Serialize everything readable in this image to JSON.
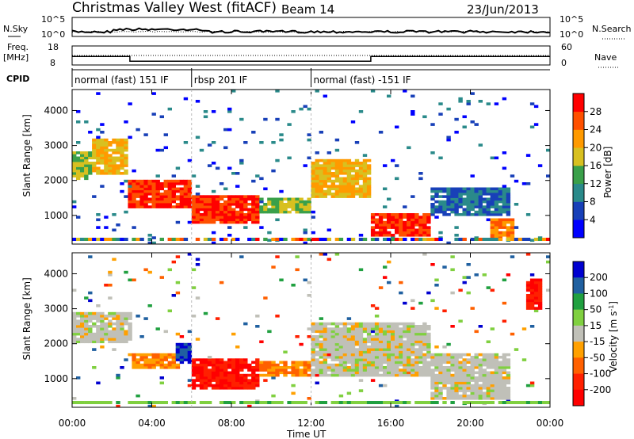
{
  "header": {
    "title": "Christmas Valley West (fitACF)",
    "beam": "Beam 14",
    "date": "23/Jun/2013"
  },
  "noise_panel": {
    "left_label": "N.Sky",
    "right_label": "N.Search",
    "left_ticks": [
      "10^5",
      "10^0"
    ],
    "right_ticks": [
      "10^5",
      "10^0"
    ]
  },
  "freq_panel": {
    "left_label_1": "Freq.",
    "left_label_2": "[MHz]",
    "left_ticks": [
      "18",
      "8"
    ],
    "right_ticks": [
      "60",
      "0"
    ],
    "right_label": "Nave"
  },
  "cpid_panel": {
    "label": "CPID",
    "segments": [
      {
        "start": 0.0,
        "end": 6.0,
        "text": "normal (fast) 151 IF"
      },
      {
        "start": 6.0,
        "end": 12.0,
        "text": "rbsp 201 IF"
      },
      {
        "start": 12.0,
        "end": 24.0,
        "text": "normal (fast) -151 IF"
      }
    ]
  },
  "axes": {
    "x_label": "Time UT",
    "x_ticks": [
      "00:00",
      "04:00",
      "08:00",
      "12:00",
      "16:00",
      "20:00",
      "00:00"
    ],
    "x_range": [
      0,
      24
    ],
    "y_label": "Slant Range [km]",
    "y_ticks": [
      "1000",
      "2000",
      "3000",
      "4000"
    ],
    "y_range": [
      180,
      4600
    ]
  },
  "power_scale": {
    "label": "Power [dB]",
    "ticks": [
      "4",
      "8",
      "12",
      "16",
      "20",
      "24",
      "28"
    ],
    "colors": [
      "#0000ff",
      "#1840b8",
      "#2a8a8a",
      "#3aa04a",
      "#d8c020",
      "#ff9a00",
      "#ff5000",
      "#ff0000"
    ]
  },
  "velocity_scale": {
    "label": "Velocity [m s",
    "label_sup": "-1",
    "label_end": "]",
    "ticks": [
      "200",
      "100",
      "50",
      "15",
      "-15",
      "-50",
      "-100",
      "-200"
    ],
    "colors": [
      "#0000d0",
      "#2060a0",
      "#20a040",
      "#80d040",
      "#c0c0b8",
      "#ffa000",
      "#ff6000",
      "#ff2000",
      "#ff0000"
    ]
  },
  "chart_data": {
    "type": "heatmap",
    "title": "Christmas Valley West (fitACF)",
    "subtitle": "Beam 14",
    "date": "23/Jun/2013",
    "xlabel": "Time UT",
    "ylabel": "Slant Range [km]",
    "xlim": [
      0,
      24
    ],
    "ylim": [
      180,
      4600
    ],
    "frequency_mhz": [
      {
        "start": 0.0,
        "end": 2.9,
        "value": 12.5
      },
      {
        "start": 2.9,
        "end": 15.0,
        "value": 10.0
      },
      {
        "start": 15.0,
        "end": 24.0,
        "value": 12.5
      }
    ],
    "power_regions": [
      {
        "t0": 0.0,
        "t1": 1.0,
        "r0": 2000,
        "r1": 2800,
        "value": 16
      },
      {
        "t0": 1.0,
        "t1": 2.8,
        "r0": 2200,
        "r1": 3200,
        "value": 20
      },
      {
        "t0": 2.8,
        "t1": 6.0,
        "r0": 1200,
        "r1": 2000,
        "value": 28
      },
      {
        "t0": 6.0,
        "t1": 9.5,
        "r0": 800,
        "r1": 1600,
        "value": 28
      },
      {
        "t0": 9.5,
        "t1": 12.0,
        "r0": 1100,
        "r1": 1500,
        "value": 16
      },
      {
        "t0": 12.0,
        "t1": 15.0,
        "r0": 1500,
        "r1": 2600,
        "value": 20
      },
      {
        "t0": 15.0,
        "t1": 18.0,
        "r0": 400,
        "r1": 1100,
        "value": 28
      },
      {
        "t0": 18.0,
        "t1": 22.0,
        "r0": 1000,
        "r1": 1800,
        "value": 8
      },
      {
        "t0": 21.0,
        "t1": 22.2,
        "r0": 300,
        "r1": 900,
        "value": 24
      }
    ],
    "velocity_regions": [
      {
        "t0": 0.0,
        "t1": 3.0,
        "r0": 2000,
        "r1": 2900,
        "value": 0
      },
      {
        "t0": 3.0,
        "t1": 5.5,
        "r0": 1300,
        "r1": 1700,
        "value": -50
      },
      {
        "t0": 5.3,
        "t1": 6.0,
        "r0": 1400,
        "r1": 2000,
        "value": 200
      },
      {
        "t0": 6.0,
        "t1": 9.5,
        "r0": 700,
        "r1": 1600,
        "value": -200
      },
      {
        "t0": 9.5,
        "t1": 12.0,
        "r0": 1100,
        "r1": 1500,
        "value": -50
      },
      {
        "t0": 12.0,
        "t1": 18.0,
        "r0": 1100,
        "r1": 2600,
        "value": 0
      },
      {
        "t0": 18.0,
        "t1": 22.0,
        "r0": 400,
        "r1": 1700,
        "value": 0
      },
      {
        "t0": 22.9,
        "t1": 23.6,
        "r0": 3000,
        "r1": 3900,
        "value": -200
      }
    ]
  }
}
